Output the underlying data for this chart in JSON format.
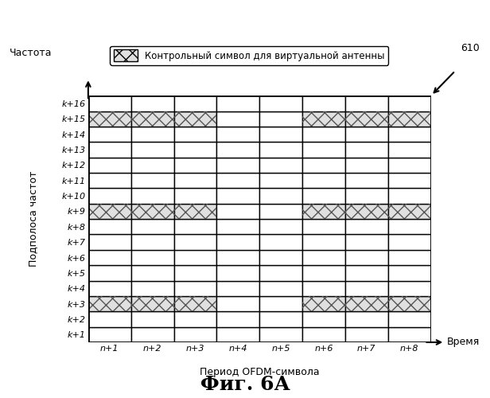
{
  "title": "Фиг. 6А",
  "freq_label": "Частота",
  "time_label": "Время",
  "yaxis_label": "Подполоса частот",
  "xaxis_label": "Период OFDM-символа",
  "legend_label": "Контрольный символ для виртуальной антенны",
  "annotation": "610",
  "n_cols": 8,
  "n_rows": 16,
  "col_labels": [
    "n+1",
    "n+2",
    "n+3",
    "n+4",
    "n+5",
    "n+6",
    "n+7",
    "n+8"
  ],
  "row_labels": [
    "k+1",
    "k+2",
    "k+3",
    "k+4",
    "k+5",
    "k+6",
    "k+7",
    "k+8",
    "k+9",
    "k+10",
    "k+11",
    "k+12",
    "k+13",
    "k+14",
    "k+15",
    "k+16"
  ],
  "pilot_rows": [
    2,
    8,
    14
  ],
  "pilot_cols_group1": [
    0,
    1,
    2
  ],
  "pilot_cols_group2": [
    5,
    6,
    7
  ],
  "hatch_pattern": "xx",
  "hatch_color": "#555555",
  "fill_color": "#e0e0e0",
  "grid_color": "#000000",
  "bg_color": "#ffffff",
  "legend_patch_color": "#e0e0e0"
}
